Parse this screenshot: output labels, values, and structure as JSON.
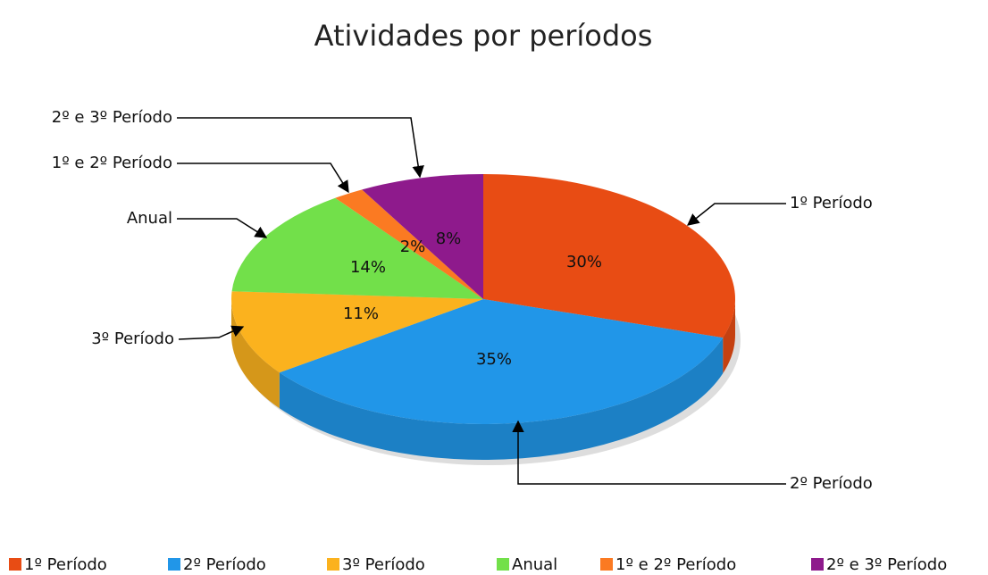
{
  "chart_data": {
    "type": "pie",
    "title": "Atividades por períodos",
    "categories": [
      "1º Período",
      "2º Período",
      "3º Período",
      "Anual",
      "1º e 2º Período",
      "2º e 3º Período"
    ],
    "values": [
      30,
      35,
      11,
      14,
      2,
      8
    ],
    "value_labels": [
      "30%",
      "35%",
      "11%",
      "14%",
      "2%",
      "8%"
    ],
    "colors": [
      "#e84c14",
      "#2196e8",
      "#fbb21e",
      "#72e04a",
      "#fb7a22",
      "#8e1a8c"
    ],
    "legend": "bottom"
  }
}
